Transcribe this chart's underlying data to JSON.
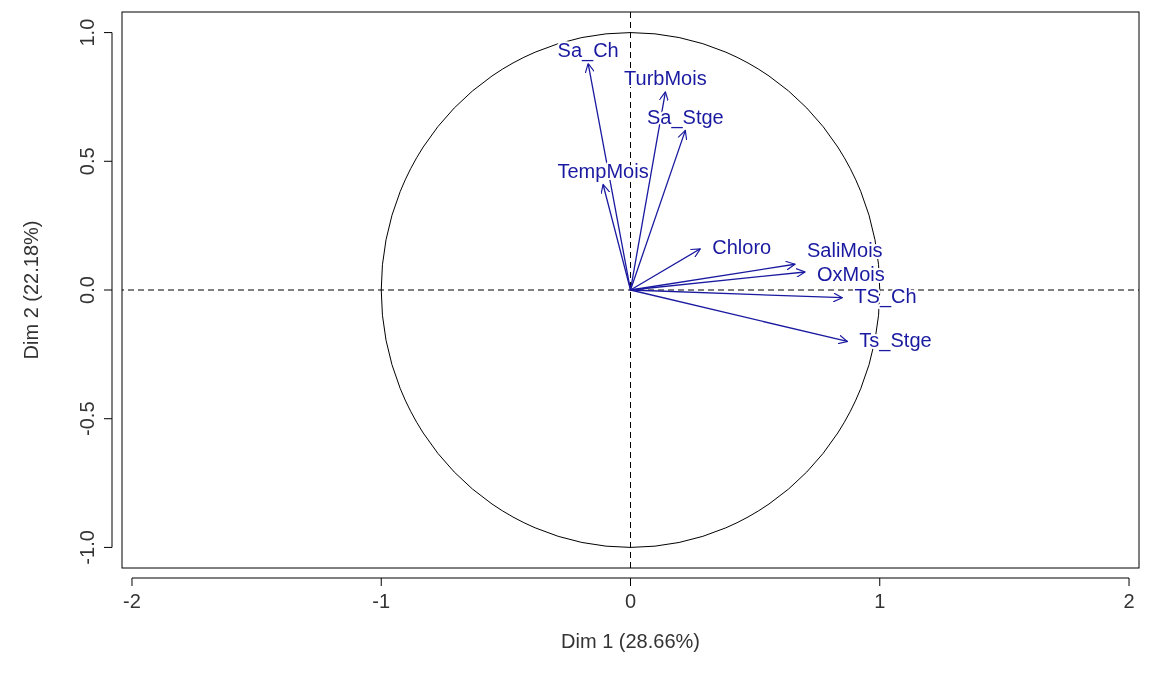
{
  "chart_data": {
    "type": "line",
    "xlabel": "Dim 1 (28.66%)",
    "ylabel": "Dim 2 (22.18%)",
    "xlim": [
      -2.04,
      2.04
    ],
    "ylim": [
      -1.08,
      1.08
    ],
    "xticks": [
      -2,
      -1,
      0,
      1,
      2
    ],
    "yticks": [
      {
        "value": -1,
        "label": "-1.0"
      },
      {
        "value": -0.5,
        "label": "-0.5"
      },
      {
        "value": 0,
        "label": "0.0"
      },
      {
        "value": 0.5,
        "label": "0.5"
      },
      {
        "value": 1,
        "label": "1.0"
      }
    ],
    "grid": false,
    "legend": false,
    "marker": "none",
    "line_style": "solid",
    "ref_lines": [
      {
        "axis": "x",
        "value": 0,
        "line_style": "dashed",
        "color": "#000000"
      },
      {
        "axis": "y",
        "value": 0,
        "line_style": "dashed",
        "color": "#000000"
      }
    ],
    "series": [
      {
        "name": "Sa_Ch",
        "color": "#1a1aa0",
        "x": [
          0,
          -0.17
        ],
        "values": [
          0,
          0.88
        ]
      },
      {
        "name": "TurbMois",
        "color": "#1a1aa0",
        "x": [
          0,
          0.14
        ],
        "values": [
          0,
          0.77
        ]
      },
      {
        "name": "Sa_Stge",
        "color": "#1a1aa0",
        "x": [
          0,
          0.22
        ],
        "values": [
          0,
          0.62
        ]
      },
      {
        "name": "TempMois",
        "color": "#1a1aa0",
        "x": [
          0,
          -0.11
        ],
        "values": [
          0,
          0.41
        ]
      },
      {
        "name": "Chloro",
        "color": "#1a1aa0",
        "x": [
          0,
          0.28
        ],
        "values": [
          0,
          0.16
        ]
      },
      {
        "name": "SaliMois",
        "color": "#1a1aa0",
        "x": [
          0,
          0.66
        ],
        "values": [
          0,
          0.1
        ]
      },
      {
        "name": "OxMois",
        "color": "#1a1aa0",
        "x": [
          0,
          0.7
        ],
        "values": [
          0,
          0.07
        ]
      },
      {
        "name": "TS_Ch",
        "color": "#1a1aa0",
        "x": [
          0,
          0.85
        ],
        "values": [
          0,
          -0.03
        ]
      },
      {
        "name": "Ts_Stge",
        "color": "#1a1aa0",
        "x": [
          0,
          0.87
        ],
        "values": [
          0,
          -0.2
        ]
      }
    ]
  }
}
